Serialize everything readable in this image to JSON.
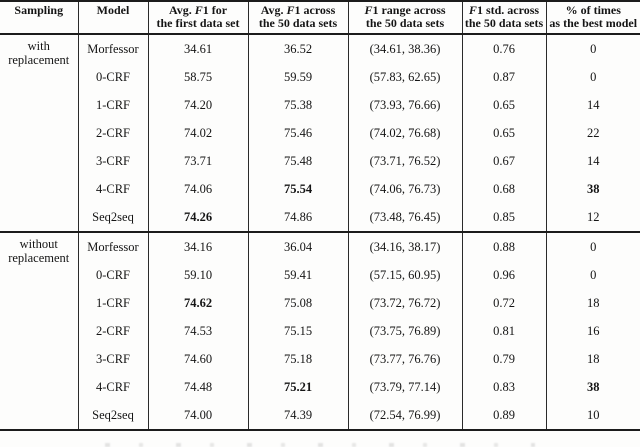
{
  "table": {
    "headers": [
      {
        "id": "sampling",
        "lines": [
          "Sampling"
        ]
      },
      {
        "id": "model",
        "lines": [
          "Model"
        ]
      },
      {
        "id": "avg-f1-first",
        "lines": [
          "Avg. F1 for",
          "the first data set"
        ]
      },
      {
        "id": "avg-f1-50",
        "lines": [
          "Avg. F1 across",
          "the 50 data sets"
        ]
      },
      {
        "id": "f1-range-50",
        "lines": [
          "F1 range across",
          "the 50 data sets"
        ]
      },
      {
        "id": "f1-std-50",
        "lines": [
          "F1 std. across",
          "the 50 data sets"
        ]
      },
      {
        "id": "pct-best",
        "lines": [
          "% of times",
          "as the best model"
        ]
      }
    ],
    "sections": [
      {
        "sampling": [
          "with",
          "replacement"
        ],
        "rows": [
          {
            "cells": [
              "Morfessor",
              "34.61",
              "36.52",
              "(34.61, 38.36)",
              "0.76",
              "0"
            ],
            "bold": []
          },
          {
            "cells": [
              "0-CRF",
              "58.75",
              "59.59",
              "(57.83, 62.65)",
              "0.87",
              "0"
            ],
            "bold": []
          },
          {
            "cells": [
              "1-CRF",
              "74.20",
              "75.38",
              "(73.93, 76.66)",
              "0.65",
              "14"
            ],
            "bold": []
          },
          {
            "cells": [
              "2-CRF",
              "74.02",
              "75.46",
              "(74.02, 76.68)",
              "0.65",
              "22"
            ],
            "bold": []
          },
          {
            "cells": [
              "3-CRF",
              "73.71",
              "75.48",
              "(73.71, 76.52)",
              "0.67",
              "14"
            ],
            "bold": []
          },
          {
            "cells": [
              "4-CRF",
              "74.06",
              "75.54",
              "(74.06, 76.73)",
              "0.68",
              "38"
            ],
            "bold": [
              2,
              5
            ]
          },
          {
            "cells": [
              "Seq2seq",
              "74.26",
              "74.86",
              "(73.48, 76.45)",
              "0.85",
              "12"
            ],
            "bold": [
              1
            ]
          }
        ]
      },
      {
        "sampling": [
          "without",
          "replacement"
        ],
        "rows": [
          {
            "cells": [
              "Morfessor",
              "34.16",
              "36.04",
              "(34.16, 38.17)",
              "0.88",
              "0"
            ],
            "bold": []
          },
          {
            "cells": [
              "0-CRF",
              "59.10",
              "59.41",
              "(57.15, 60.95)",
              "0.96",
              "0"
            ],
            "bold": []
          },
          {
            "cells": [
              "1-CRF",
              "74.62",
              "75.08",
              "(73.72, 76.72)",
              "0.72",
              "18"
            ],
            "bold": [
              1
            ]
          },
          {
            "cells": [
              "2-CRF",
              "74.53",
              "75.15",
              "(73.75, 76.89)",
              "0.81",
              "16"
            ],
            "bold": []
          },
          {
            "cells": [
              "3-CRF",
              "74.60",
              "75.18",
              "(73.77, 76.76)",
              "0.79",
              "18"
            ],
            "bold": []
          },
          {
            "cells": [
              "4-CRF",
              "74.48",
              "75.21",
              "(73.79, 77.14)",
              "0.83",
              "38"
            ],
            "bold": [
              2,
              5
            ]
          },
          {
            "cells": [
              "Seq2seq",
              "74.00",
              "74.39",
              "(72.54, 76.99)",
              "0.89",
              "10"
            ],
            "bold": []
          }
        ]
      }
    ]
  }
}
